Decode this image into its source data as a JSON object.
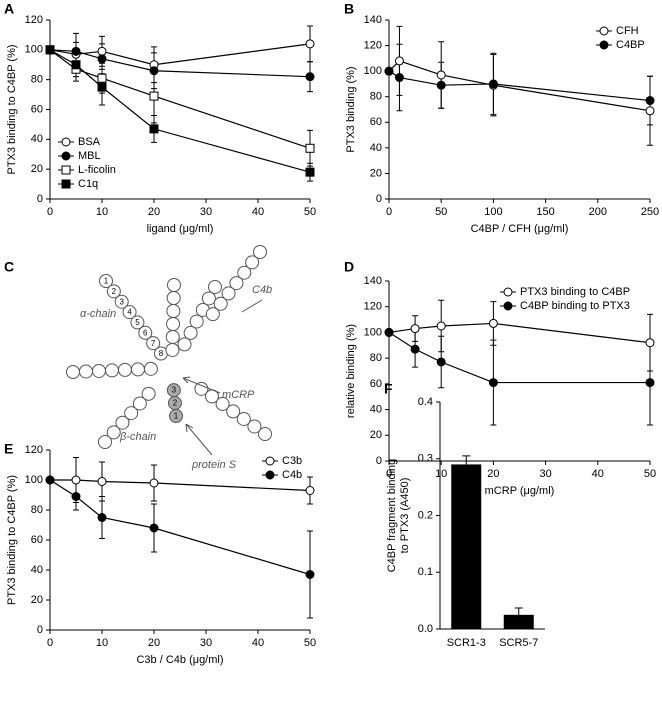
{
  "chart_data": [
    {
      "panel": "A",
      "type": "line",
      "xlabel": "ligand (μg/ml)",
      "ylabel": "PTX3 binding to C4BP (%)",
      "xlim": [
        0,
        50
      ],
      "xticks": [
        0,
        10,
        20,
        30,
        40,
        50
      ],
      "ylim": [
        0,
        120
      ],
      "yticks": [
        0,
        20,
        40,
        60,
        80,
        100,
        120
      ],
      "legend": "lower left",
      "series": [
        {
          "name": "BSA",
          "color": "#000000",
          "marker": "circle",
          "marker_fill": "#ffffff",
          "x": [
            0,
            5,
            10,
            20,
            50
          ],
          "values": [
            100,
            97,
            99,
            90,
            104
          ],
          "errors": [
            null,
            8,
            10,
            12,
            12
          ]
        },
        {
          "name": "MBL",
          "color": "#000000",
          "marker": "circle",
          "marker_fill": "#000000",
          "x": [
            0,
            5,
            10,
            20,
            50
          ],
          "values": [
            100,
            99,
            94,
            86,
            82
          ],
          "errors": [
            null,
            12,
            10,
            12,
            10
          ]
        },
        {
          "name": "L-ficolin",
          "color": "#000000",
          "marker": "square",
          "marker_fill": "#ffffff",
          "x": [
            0,
            5,
            10,
            20,
            50
          ],
          "values": [
            100,
            87,
            81,
            69,
            34
          ],
          "errors": [
            null,
            8,
            10,
            18,
            12
          ]
        },
        {
          "name": "C1q",
          "color": "#000000",
          "marker": "square",
          "marker_fill": "#000000",
          "x": [
            0,
            5,
            10,
            20,
            50
          ],
          "values": [
            100,
            90,
            75,
            47,
            18
          ],
          "errors": [
            null,
            8,
            12,
            9,
            6
          ]
        }
      ]
    },
    {
      "panel": "B",
      "type": "line",
      "xlabel": "C4BP / CFH (μg/ml)",
      "ylabel": "PTX3 binding (%)",
      "xlim": [
        0,
        250
      ],
      "xticks": [
        0,
        50,
        100,
        150,
        200,
        250
      ],
      "ylim": [
        0,
        140
      ],
      "yticks": [
        0,
        20,
        40,
        60,
        80,
        100,
        120,
        140
      ],
      "legend": "upper right",
      "series": [
        {
          "name": "CFH",
          "color": "#000000",
          "marker": "circle",
          "marker_fill": "#ffffff",
          "x": [
            0,
            10,
            50,
            100,
            250
          ],
          "values": [
            100,
            108,
            97,
            89,
            69
          ],
          "errors": [
            null,
            27,
            26,
            24,
            27
          ]
        },
        {
          "name": "C4BP",
          "color": "#000000",
          "marker": "circle",
          "marker_fill": "#000000",
          "x": [
            0,
            10,
            50,
            100,
            250
          ],
          "values": [
            100,
            95,
            89,
            90,
            77
          ],
          "errors": [
            null,
            26,
            18,
            24,
            19
          ]
        }
      ]
    },
    {
      "panel": "D",
      "type": "line",
      "xlabel": "mCRP (μg/ml)",
      "ylabel": "relative binding (%)",
      "xlim": [
        0,
        50
      ],
      "xticks": [
        0,
        10,
        20,
        30,
        40,
        50
      ],
      "ylim": [
        0,
        140
      ],
      "yticks": [
        0,
        20,
        40,
        60,
        80,
        100,
        120,
        140
      ],
      "legend": "upper right",
      "series": [
        {
          "name": "PTX3 binding to C4BP",
          "color": "#000000",
          "marker": "circle",
          "marker_fill": "#ffffff",
          "x": [
            0,
            5,
            10,
            20,
            50
          ],
          "values": [
            100,
            103,
            105,
            107,
            92
          ],
          "errors": [
            null,
            10,
            20,
            17,
            22
          ]
        },
        {
          "name": "C4BP binding to PTX3",
          "color": "#000000",
          "marker": "circle",
          "marker_fill": "#000000",
          "x": [
            0,
            5,
            10,
            20,
            50
          ],
          "values": [
            100,
            87,
            77,
            61,
            61
          ],
          "errors": [
            null,
            14,
            20,
            33,
            33
          ]
        }
      ]
    },
    {
      "panel": "E",
      "type": "line",
      "xlabel": "C3b / C4b (μg/ml)",
      "ylabel": "PTX3 binding to C4BP (%)",
      "xlim": [
        0,
        50
      ],
      "xticks": [
        0,
        10,
        20,
        30,
        40,
        50
      ],
      "ylim": [
        0,
        120
      ],
      "yticks": [
        0,
        20,
        40,
        60,
        80,
        100,
        120
      ],
      "legend": "upper right",
      "series": [
        {
          "name": "C3b",
          "color": "#000000",
          "marker": "circle",
          "marker_fill": "#ffffff",
          "x": [
            0,
            5,
            10,
            20,
            50
          ],
          "values": [
            100,
            100,
            99,
            98,
            93
          ],
          "errors": [
            null,
            15,
            13,
            12,
            9
          ]
        },
        {
          "name": "C4b",
          "color": "#000000",
          "marker": "circle",
          "marker_fill": "#000000",
          "x": [
            0,
            5,
            10,
            20,
            50
          ],
          "values": [
            100,
            89,
            75,
            68,
            37
          ],
          "errors": [
            null,
            9,
            14,
            16,
            29
          ]
        }
      ]
    },
    {
      "panel": "F",
      "type": "bar",
      "ylabel": [
        "C4BP fragment binding",
        "to PTX3 (A450)"
      ],
      "categories": [
        "SCR1-3",
        "SCR5-7"
      ],
      "values": [
        0.29,
        0.025
      ],
      "errors": [
        0.015,
        0.012
      ],
      "color": "#000000",
      "ylim": [
        0,
        0.4
      ],
      "yticks": [
        {
          "value": 0,
          "label": "0.0"
        },
        0.1,
        0.2,
        0.3,
        0.4
      ]
    }
  ],
  "diagram": {
    "panel": "C",
    "alpha_label": "α-chain",
    "beta_label": "β-chain",
    "c4b_label": "C4b",
    "mcrp_label": "mCRP",
    "protein_s_label": "protein S",
    "alpha_scr": [
      "1",
      "2",
      "3",
      "4",
      "5",
      "6",
      "7",
      "8"
    ],
    "beta_scr": [
      "1",
      "2",
      "3"
    ]
  }
}
